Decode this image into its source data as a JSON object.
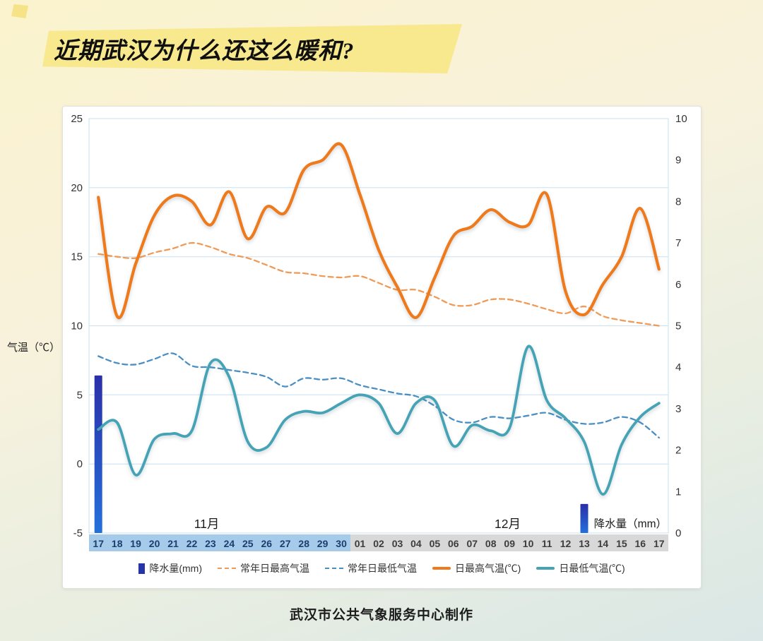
{
  "banner": {
    "title": "近期武汉为什么还这么暖和?"
  },
  "footer": {
    "caption": "武汉市公共气象服务中心制作"
  },
  "chart_data": {
    "type": "line",
    "title": "近期武汉为什么还这么暖和?",
    "grid": true,
    "grid_color": "#C9E0F2",
    "legend_position": "bottom",
    "bar_gradient": [
      "#2B2FA8",
      "#2470DB"
    ],
    "x": [
      "17",
      "18",
      "19",
      "20",
      "21",
      "22",
      "23",
      "24",
      "25",
      "26",
      "27",
      "28",
      "29",
      "30",
      "01",
      "02",
      "03",
      "04",
      "05",
      "06",
      "07",
      "08",
      "09",
      "10",
      "11",
      "12",
      "13",
      "14",
      "15",
      "16",
      "17"
    ],
    "left_axis": {
      "label": "气温（℃）",
      "min": -5,
      "max": 25,
      "ticks": [
        25,
        20,
        15,
        10,
        5,
        0,
        -5
      ]
    },
    "right_axis": {
      "label": "降水量（mm）",
      "min": 0,
      "max": 10,
      "ticks": [
        10,
        9,
        8,
        7,
        6,
        5,
        4,
        3,
        2,
        1,
        0
      ]
    },
    "x_axis_bands": [
      {
        "id": "november",
        "label": "11月",
        "start": 0,
        "end": 13,
        "color": "#A6CBEA",
        "text_color": "#1A3E6E",
        "label_center": 5.8
      },
      {
        "id": "december",
        "label": "12月",
        "start": 14,
        "end": 30,
        "color": "#D8D8D8",
        "text_color": "#3D3D3D",
        "label_center": 21.9
      }
    ],
    "series": [
      {
        "id": "precipitation",
        "name": "降水量(mm)",
        "kind": "bar",
        "dash": false,
        "axis": "right",
        "color": "#2733A8",
        "width": 11,
        "values": [
          3.8,
          0,
          0,
          0,
          0,
          0,
          0,
          0,
          0,
          0,
          0,
          0,
          0,
          0,
          0,
          0,
          0,
          0,
          0,
          0,
          0,
          0,
          0,
          0,
          0,
          0,
          0.7,
          0,
          0,
          0,
          0
        ]
      },
      {
        "id": "normal-daily-max",
        "name": "常年日最高气温",
        "kind": "line",
        "dash": true,
        "axis": "left",
        "color": "#F09A57",
        "width": 2.3,
        "values": [
          15.2,
          15.0,
          14.9,
          15.3,
          15.6,
          16.0,
          15.7,
          15.2,
          14.9,
          14.4,
          13.9,
          13.8,
          13.6,
          13.5,
          13.6,
          13.1,
          12.6,
          12.6,
          12.1,
          11.5,
          11.5,
          11.9,
          11.9,
          11.6,
          11.2,
          10.9,
          11.4,
          10.7,
          10.4,
          10.2,
          10.0
        ]
      },
      {
        "id": "normal-daily-min",
        "name": "常年日最低气温",
        "kind": "line",
        "dash": true,
        "axis": "left",
        "color": "#4A8FC4",
        "width": 2.3,
        "values": [
          7.8,
          7.3,
          7.2,
          7.6,
          8.0,
          7.1,
          7.0,
          6.8,
          6.6,
          6.3,
          5.6,
          6.2,
          6.1,
          6.2,
          5.7,
          5.4,
          5.1,
          4.9,
          4.2,
          3.2,
          3.0,
          3.4,
          3.3,
          3.5,
          3.7,
          3.2,
          2.9,
          3.0,
          3.4,
          3.0,
          1.9
        ]
      },
      {
        "id": "daily-max",
        "name": "日最高气温(℃)",
        "kind": "line",
        "dash": false,
        "axis": "left",
        "color": "#EE7A1F",
        "width": 4.2,
        "values": [
          19.3,
          10.7,
          14.5,
          18.0,
          19.4,
          19.0,
          17.3,
          19.7,
          16.3,
          18.6,
          18.2,
          21.3,
          22.0,
          23.1,
          19.5,
          15.5,
          12.8,
          10.6,
          13.5,
          16.5,
          17.2,
          18.4,
          17.5,
          17.3,
          19.5,
          12.5,
          10.8,
          13.0,
          15.0,
          18.5,
          14.1
        ]
      },
      {
        "id": "daily-min",
        "name": "日最低气温(℃)",
        "kind": "line",
        "dash": false,
        "axis": "left",
        "color": "#45A3B5",
        "width": 3.8,
        "values": [
          2.5,
          3.0,
          -0.8,
          1.8,
          2.2,
          2.4,
          7.3,
          6.3,
          1.6,
          1.2,
          3.2,
          3.8,
          3.7,
          4.4,
          5.0,
          4.4,
          2.2,
          4.4,
          4.6,
          1.3,
          2.8,
          2.4,
          2.6,
          8.5,
          4.6,
          3.3,
          1.6,
          -2.2,
          1.4,
          3.4,
          4.4
        ]
      }
    ]
  }
}
